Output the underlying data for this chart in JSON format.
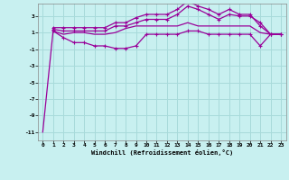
{
  "background_color": "#c8f0f0",
  "grid_color": "#a8dada",
  "line_color": "#990099",
  "marker_color": "#990099",
  "xlabel": "Windchill (Refroidissement éolien,°C)",
  "xlim": [
    -0.5,
    23.5
  ],
  "ylim": [
    -12,
    4.5
  ],
  "yticks": [
    -11,
    -9,
    -7,
    -5,
    -3,
    -1,
    1,
    3
  ],
  "xticks": [
    0,
    1,
    2,
    3,
    4,
    5,
    6,
    7,
    8,
    9,
    10,
    11,
    12,
    13,
    14,
    15,
    16,
    17,
    18,
    19,
    20,
    21,
    22,
    23
  ],
  "series": [
    {
      "x": [
        0,
        1,
        2,
        3,
        4,
        5,
        6,
        7,
        8,
        9,
        10,
        11,
        12,
        13,
        14,
        15,
        16,
        17,
        18,
        19,
        20,
        21,
        22,
        23
      ],
      "y": [
        -11,
        1.2,
        0.8,
        1.0,
        1.0,
        0.8,
        0.8,
        1.0,
        1.5,
        1.8,
        1.8,
        1.8,
        1.8,
        1.8,
        2.2,
        1.8,
        1.8,
        1.8,
        1.8,
        1.8,
        1.8,
        1.0,
        0.8,
        0.8
      ],
      "has_markers": false
    },
    {
      "x": [
        1,
        2,
        3,
        4,
        5,
        6,
        7,
        8,
        9,
        10,
        11,
        12,
        13,
        14,
        15,
        16,
        17,
        18,
        19,
        20,
        21,
        22,
        23
      ],
      "y": [
        1.2,
        0.4,
        -0.2,
        -0.2,
        -0.6,
        -0.6,
        -0.9,
        -0.9,
        -0.6,
        0.8,
        0.8,
        0.8,
        0.8,
        1.2,
        1.2,
        0.8,
        0.8,
        0.8,
        0.8,
        0.8,
        -0.6,
        0.8,
        0.8
      ],
      "has_markers": true
    },
    {
      "x": [
        1,
        2,
        3,
        4,
        5,
        6,
        7,
        8,
        9,
        10,
        11,
        12,
        13,
        14,
        15,
        16,
        17,
        18,
        19,
        20,
        21,
        22,
        23
      ],
      "y": [
        1.4,
        1.2,
        1.2,
        1.2,
        1.2,
        1.2,
        1.8,
        1.8,
        2.2,
        2.6,
        2.6,
        2.6,
        3.2,
        4.2,
        3.8,
        3.2,
        2.6,
        3.2,
        3.0,
        3.0,
        2.2,
        0.8,
        0.8
      ],
      "has_markers": true
    },
    {
      "x": [
        1,
        2,
        3,
        4,
        5,
        6,
        7,
        8,
        9,
        10,
        11,
        12,
        13,
        14,
        15,
        16,
        17,
        18,
        19,
        20,
        21,
        22,
        23
      ],
      "y": [
        1.6,
        1.6,
        1.6,
        1.6,
        1.6,
        1.6,
        2.2,
        2.2,
        2.8,
        3.2,
        3.2,
        3.2,
        3.8,
        4.8,
        4.2,
        3.8,
        3.2,
        3.8,
        3.2,
        3.2,
        1.8,
        0.8,
        0.8
      ],
      "has_markers": true
    }
  ]
}
